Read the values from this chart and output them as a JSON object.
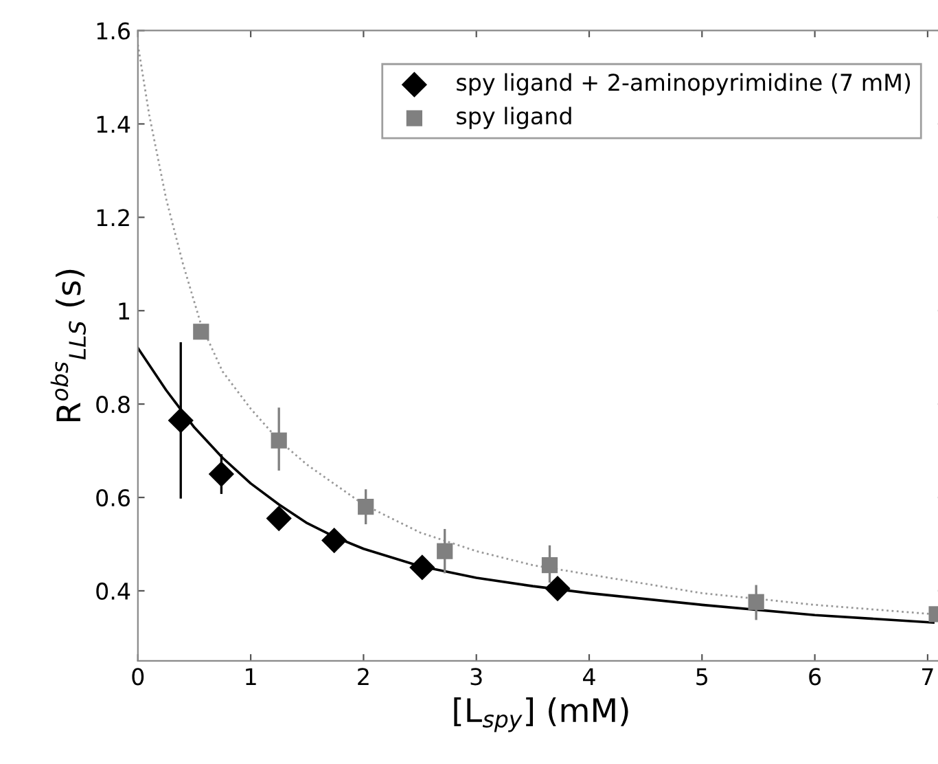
{
  "chart_data": {
    "type": "scatter",
    "xlabel": "[L$_{spy}$] (mM)",
    "ylabel": "R$^{obs}$$_{LLS}$ (s)",
    "xlim": [
      0,
      7.15
    ],
    "ylim": [
      0.25,
      1.6
    ],
    "xticks": [
      0,
      1,
      2,
      3,
      4,
      5,
      6,
      7
    ],
    "yticks": [
      0.4,
      0.6,
      0.8,
      {
        "value": 1,
        "label": "1"
      },
      1.2,
      1.4,
      1.6
    ],
    "grid": false,
    "legend": "top right",
    "series": [
      {
        "name": "spy ligand + 2-aminopyrimidine (7 mM)",
        "color": "#000000",
        "marker": "diamond",
        "x": [
          0.38,
          0.74,
          1.25,
          1.74,
          2.52,
          3.72
        ],
        "values": [
          0.765,
          0.65,
          0.555,
          0.508,
          0.45,
          0.405
        ],
        "errors": [
          [
            0.6,
            0.93
          ],
          [
            0.61,
            0.69
          ],
          null,
          null,
          null,
          null
        ]
      },
      {
        "name": "spy ligand",
        "color": "#808080",
        "marker": "square",
        "x": [
          0.56,
          1.25,
          2.02,
          2.72,
          3.65,
          5.48,
          7.08
        ],
        "values": [
          0.955,
          0.722,
          0.58,
          0.485,
          0.455,
          0.376,
          0.35
        ],
        "errors": [
          null,
          [
            0.66,
            0.79
          ],
          [
            0.545,
            0.615
          ],
          [
            0.44,
            0.53
          ],
          [
            0.42,
            0.495
          ],
          [
            0.34,
            0.41
          ],
          null
        ]
      },
      {
        "type": "line",
        "color": "#000000",
        "line_style": "solid",
        "x": [
          0,
          0.25,
          0.5,
          0.75,
          1,
          1.25,
          1.5,
          1.75,
          2,
          2.5,
          3,
          3.5,
          4,
          5,
          6,
          7.05
        ],
        "values": [
          0.92,
          0.83,
          0.75,
          0.685,
          0.63,
          0.585,
          0.545,
          0.515,
          0.49,
          0.453,
          0.428,
          0.41,
          0.395,
          0.37,
          0.348,
          0.332
        ]
      },
      {
        "type": "line",
        "color": "#999999",
        "line_style": "dotted",
        "x": [
          0,
          0.1,
          0.25,
          0.4,
          0.56,
          0.75,
          1,
          1.25,
          1.5,
          2,
          2.5,
          3,
          3.5,
          4,
          5,
          6,
          7.05
        ],
        "values": [
          1.57,
          1.42,
          1.24,
          1.1,
          0.97,
          0.87,
          0.79,
          0.722,
          0.67,
          0.585,
          0.525,
          0.485,
          0.455,
          0.435,
          0.395,
          0.37,
          0.35
        ]
      }
    ]
  }
}
